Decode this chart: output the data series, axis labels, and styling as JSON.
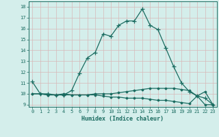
{
  "xlabel": "Humidex (Indice chaleur)",
  "background_color": "#d4eeeb",
  "grid_color": "#c0dcd9",
  "line_color": "#1a6b60",
  "xlim": [
    -0.5,
    23.5
  ],
  "ylim": [
    8.8,
    18.5
  ],
  "yticks": [
    9,
    10,
    11,
    12,
    13,
    14,
    15,
    16,
    17,
    18
  ],
  "xticks": [
    0,
    1,
    2,
    3,
    4,
    5,
    6,
    7,
    8,
    9,
    10,
    11,
    12,
    13,
    14,
    15,
    16,
    17,
    18,
    19,
    20,
    21,
    22,
    23
  ],
  "series1_x": [
    0,
    1,
    2,
    3,
    4,
    5,
    6,
    7,
    8,
    9,
    10,
    11,
    12,
    13,
    14,
    15,
    16,
    17,
    18,
    19,
    20,
    21,
    22,
    23
  ],
  "series1_y": [
    11.1,
    10.0,
    10.0,
    9.9,
    9.9,
    10.3,
    11.9,
    13.3,
    13.8,
    15.5,
    15.3,
    16.3,
    16.7,
    16.7,
    17.8,
    16.3,
    15.9,
    14.2,
    12.5,
    11.0,
    10.2,
    9.8,
    9.6,
    9.0
  ],
  "series2_x": [
    0,
    1,
    2,
    3,
    4,
    5,
    6,
    7,
    8,
    9,
    10,
    11,
    12,
    13,
    14,
    15,
    16,
    17,
    18,
    19,
    20,
    21,
    22,
    23
  ],
  "series2_y": [
    10.0,
    10.0,
    9.9,
    9.9,
    9.9,
    9.9,
    9.9,
    9.9,
    10.0,
    10.0,
    10.0,
    10.1,
    10.2,
    10.3,
    10.4,
    10.5,
    10.5,
    10.5,
    10.5,
    10.4,
    10.3,
    9.8,
    9.0,
    9.0
  ],
  "series3_x": [
    0,
    1,
    2,
    3,
    4,
    5,
    6,
    7,
    8,
    9,
    10,
    11,
    12,
    13,
    14,
    15,
    16,
    17,
    18,
    19,
    20,
    21,
    22,
    23
  ],
  "series3_y": [
    10.0,
    10.0,
    9.9,
    9.9,
    10.0,
    9.9,
    9.9,
    9.9,
    9.9,
    9.8,
    9.7,
    9.7,
    9.6,
    9.6,
    9.6,
    9.5,
    9.4,
    9.4,
    9.3,
    9.2,
    9.1,
    9.8,
    10.2,
    9.0
  ]
}
